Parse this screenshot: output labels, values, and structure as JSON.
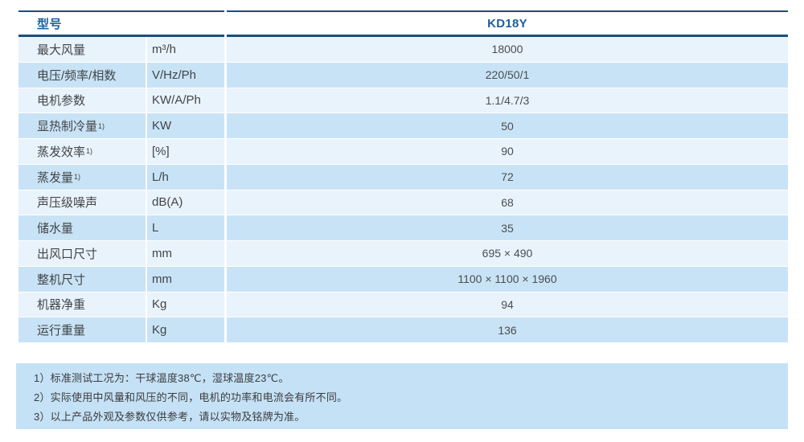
{
  "colors": {
    "rule_navy": "#184f7d",
    "header_text_blue": "#1b5e9e",
    "row_light": "#e9f3fc",
    "row_dark": "#c9e3f6",
    "notes_bg": "#c5e1f6",
    "body_text": "#414548"
  },
  "table": {
    "header": {
      "model_label": "型号",
      "model_value": "KD18Y"
    },
    "rows": [
      {
        "label": "最大风量",
        "sup": "",
        "unit": "m³/h",
        "value": "18000"
      },
      {
        "label": "电压/频率/相数",
        "sup": "",
        "unit": "V/Hz/Ph",
        "value": "220/50/1"
      },
      {
        "label": "电机参数",
        "sup": "",
        "unit": "KW/A/Ph",
        "value": "1.1/4.7/3"
      },
      {
        "label": "显热制冷量",
        "sup": "1)",
        "unit": "KW",
        "value": "50"
      },
      {
        "label": "蒸发效率",
        "sup": "1)",
        "unit": "[%]",
        "value": "90"
      },
      {
        "label": "蒸发量",
        "sup": "1)",
        "unit": "L/h",
        "value": "72"
      },
      {
        "label": "声压级噪声",
        "sup": "",
        "unit": "dB(A)",
        "value": "68"
      },
      {
        "label": "储水量",
        "sup": "",
        "unit": "L",
        "value": "35"
      },
      {
        "label": "出风口尺寸",
        "sup": "",
        "unit": "mm",
        "value": "695 × 490"
      },
      {
        "label": "整机尺寸",
        "sup": "",
        "unit": "mm",
        "value": "1100 × 1100 × 1960"
      },
      {
        "label": "机器净重",
        "sup": "",
        "unit": "Kg",
        "value": "94"
      },
      {
        "label": "运行重量",
        "sup": "",
        "unit": "Kg",
        "value": "136"
      }
    ]
  },
  "notes": [
    "1）标准测试工况为：干球温度38℃，湿球温度23℃。",
    "2）实际使用中风量和风压的不同，电机的功率和电流会有所不同。",
    "3）以上产品外观及参数仅供参考，请以实物及铭牌为准。"
  ]
}
